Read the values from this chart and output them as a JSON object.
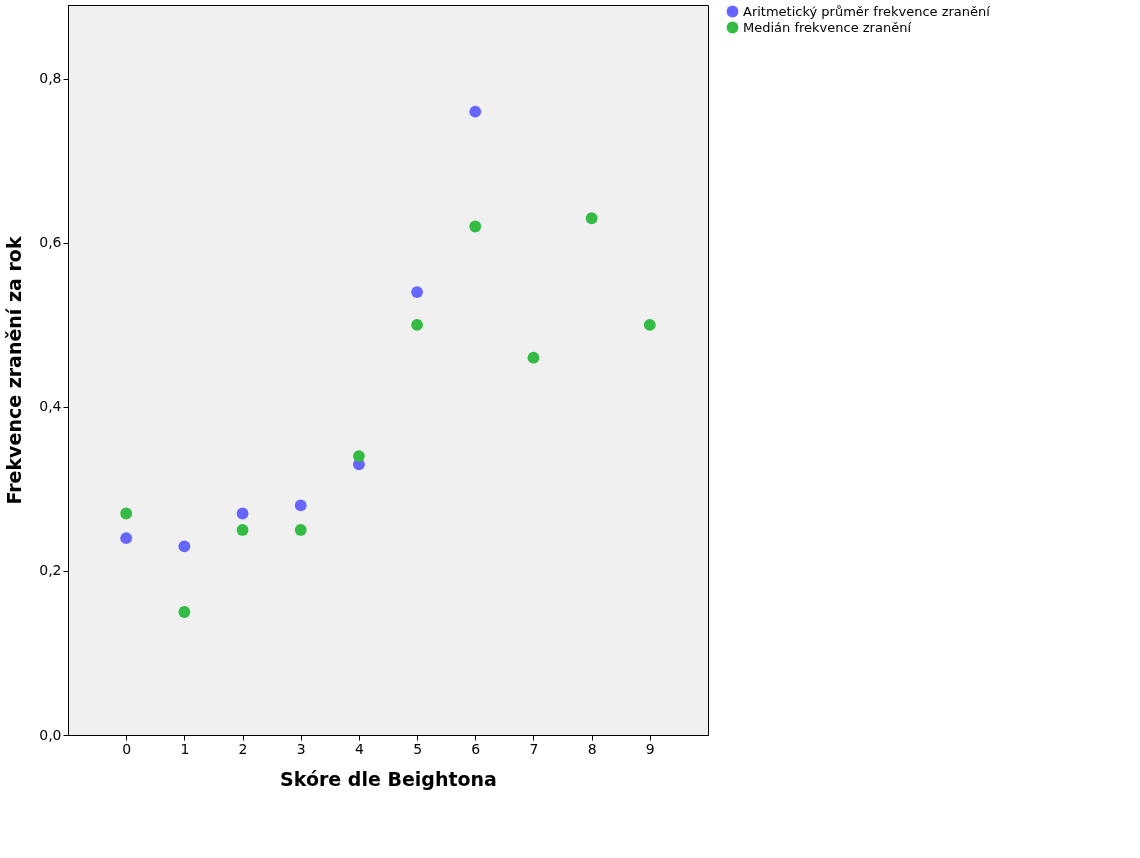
{
  "chart_data": {
    "type": "scatter",
    "xlabel": "Skóre dle Beightona",
    "ylabel": "Frekvence zranění za rok",
    "x": [
      0,
      1,
      2,
      3,
      4,
      5,
      6,
      7,
      8,
      9
    ],
    "series": [
      {
        "name": "Aritmetický průměr frekvence zranění",
        "color": "#6666ff",
        "values": [
          0.24,
          0.23,
          0.27,
          0.28,
          0.33,
          0.54,
          0.76,
          null,
          null,
          null
        ]
      },
      {
        "name": "Medián frekvence zranění",
        "color": "#33bb44",
        "values": [
          0.27,
          0.15,
          0.25,
          0.25,
          0.34,
          0.5,
          0.62,
          0.46,
          0.63,
          0.5
        ]
      }
    ],
    "xlim": [
      -1,
      10
    ],
    "xticks": [
      0,
      1,
      2,
      3,
      4,
      5,
      6,
      7,
      8,
      9
    ],
    "ylim": [
      0,
      0.89
    ],
    "yticks": [
      {
        "value": 0,
        "label": "0,0"
      },
      {
        "value": 0.2,
        "label": "0,2"
      },
      {
        "value": 0.4,
        "label": "0,4"
      },
      {
        "value": 0.6,
        "label": "0,6"
      },
      {
        "value": 0.8,
        "label": "0,8"
      }
    ],
    "grid": false,
    "legend": "top right",
    "marker": "circle"
  }
}
